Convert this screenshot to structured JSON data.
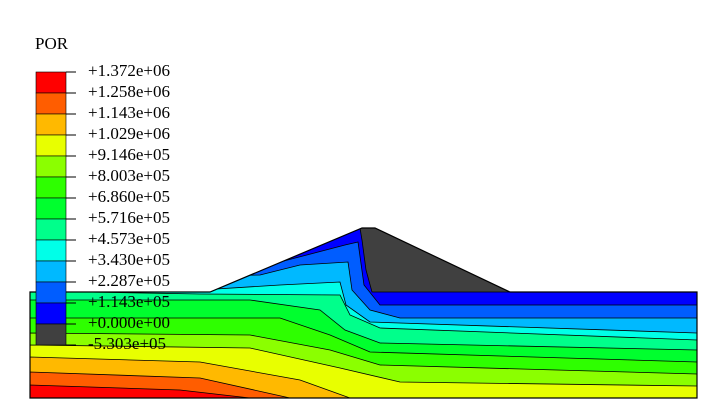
{
  "legend": {
    "title": "POR",
    "labels": [
      "+1.372e+06",
      "+1.258e+06",
      "+1.143e+06",
      "+1.029e+06",
      "+9.146e+05",
      "+8.003e+05",
      "+6.860e+05",
      "+5.716e+05",
      "+4.573e+05",
      "+3.430e+05",
      "+2.287e+05",
      "+1.143e+05",
      "+0.000e+00",
      "-5.303e+05"
    ],
    "colors": [
      "#ff0000",
      "#ff5d00",
      "#ffb900",
      "#e8ff00",
      "#8bff00",
      "#2eff00",
      "#00ff2e",
      "#00ff8b",
      "#00ffe8",
      "#00b9ff",
      "#005dff",
      "#0000ff",
      "#404040"
    ]
  }
}
